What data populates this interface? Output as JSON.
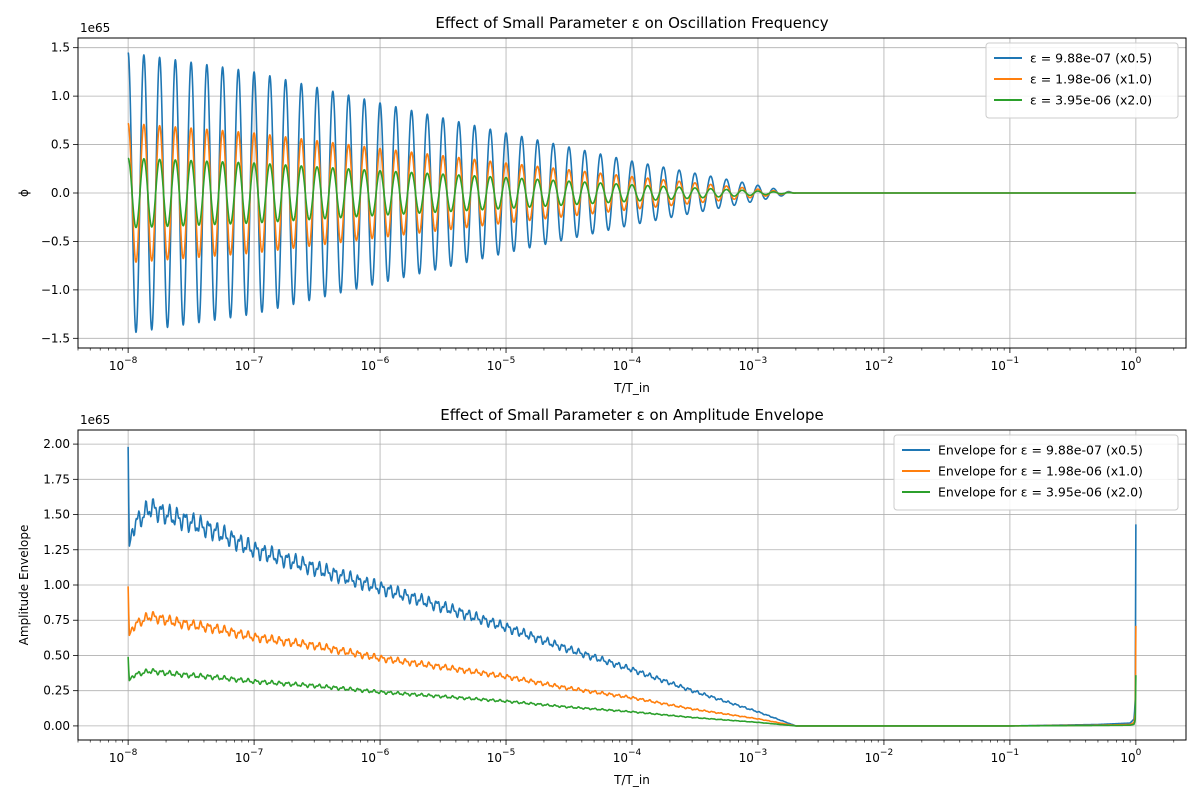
{
  "chart_data": [
    {
      "type": "line",
      "title": "Effect of Small Parameter ε on Oscillation Frequency",
      "xlabel": "T/T_in",
      "ylabel": "ϕ",
      "x_scale": "log",
      "xlim": [
        4e-09,
        2.5
      ],
      "ylim": [
        -1.6,
        1.6
      ],
      "y_offset_label": "1e65",
      "x_ticks": [
        1e-08,
        1e-07,
        1e-06,
        1e-05,
        0.0001,
        0.001,
        0.01,
        0.1,
        1
      ],
      "x_tick_labels": [
        {
          "base": "10",
          "exp": "−8"
        },
        {
          "base": "10",
          "exp": "−7"
        },
        {
          "base": "10",
          "exp": "−6"
        },
        {
          "base": "10",
          "exp": "−5"
        },
        {
          "base": "10",
          "exp": "−4"
        },
        {
          "base": "10",
          "exp": "−3"
        },
        {
          "base": "10",
          "exp": "−2"
        },
        {
          "base": "10",
          "exp": "−1"
        },
        {
          "base": "10",
          "exp": "0"
        }
      ],
      "y_ticks": [
        -1.5,
        -1.0,
        -0.5,
        0.0,
        0.5,
        1.0,
        1.5
      ],
      "y_tick_labels": [
        "−1.5",
        "−1.0",
        "−0.5",
        "0.0",
        "0.5",
        "1.0",
        "1.5"
      ],
      "grid": true,
      "legend_position": "upper-right",
      "oscillation": {
        "cycles_per_decade": 8,
        "decay_end_x": 0.002
      },
      "series": [
        {
          "name": "ε = 9.88e-07 (x0.5)",
          "color": "#1f77b4",
          "envelope": {
            "x": [
              1e-08,
              1e-07,
              1e-06,
              1e-05,
              0.0001,
              0.001,
              0.002,
              1
            ],
            "y": [
              1.45,
              1.25,
              0.93,
              0.62,
              0.33,
              0.08,
              0.0,
              0.0
            ]
          }
        },
        {
          "name": "ε = 1.98e-06 (x1.0)",
          "color": "#ff7f0e",
          "envelope": {
            "x": [
              1e-08,
              1e-07,
              1e-06,
              1e-05,
              0.0001,
              0.001,
              0.002,
              1
            ],
            "y": [
              0.72,
              0.62,
              0.46,
              0.31,
              0.17,
              0.04,
              0.0,
              0.0
            ]
          }
        },
        {
          "name": "ε = 3.95e-06 (x2.0)",
          "color": "#2ca02c",
          "envelope": {
            "x": [
              1e-08,
              1e-07,
              1e-06,
              1e-05,
              0.0001,
              0.001,
              0.002,
              1
            ],
            "y": [
              0.36,
              0.31,
              0.23,
              0.16,
              0.085,
              0.02,
              0.0,
              0.0
            ]
          }
        }
      ]
    },
    {
      "type": "line",
      "title": "Effect of Small Parameter ε on Amplitude Envelope",
      "xlabel": "T/T_in",
      "ylabel": "Amplitude Envelope",
      "x_scale": "log",
      "xlim": [
        4e-09,
        2.5
      ],
      "ylim": [
        -0.1,
        2.1
      ],
      "y_offset_label": "1e65",
      "x_ticks": [
        1e-08,
        1e-07,
        1e-06,
        1e-05,
        0.0001,
        0.001,
        0.01,
        0.1,
        1
      ],
      "x_tick_labels": [
        {
          "base": "10",
          "exp": "−8"
        },
        {
          "base": "10",
          "exp": "−7"
        },
        {
          "base": "10",
          "exp": "−6"
        },
        {
          "base": "10",
          "exp": "−5"
        },
        {
          "base": "10",
          "exp": "−4"
        },
        {
          "base": "10",
          "exp": "−3"
        },
        {
          "base": "10",
          "exp": "−2"
        },
        {
          "base": "10",
          "exp": "−1"
        },
        {
          "base": "10",
          "exp": "0"
        }
      ],
      "y_ticks": [
        0.0,
        0.25,
        0.5,
        0.75,
        1.0,
        1.25,
        1.5,
        1.75,
        2.0
      ],
      "y_tick_labels": [
        "0.00",
        "0.25",
        "0.50",
        "0.75",
        "1.00",
        "1.25",
        "1.50",
        "1.75",
        "2.00"
      ],
      "grid": true,
      "legend_position": "upper-right",
      "series": [
        {
          "name": "Envelope for ε = 9.88e-07 (x0.5)",
          "color": "#1f77b4",
          "x": [
            1e-08,
            1.02e-08,
            1.1e-08,
            1.5e-08,
            2e-08,
            3e-08,
            5e-08,
            1e-07,
            3e-07,
            1e-06,
            3e-06,
            1e-05,
            3e-05,
            0.0001,
            0.0003,
            0.001,
            0.002,
            0.01,
            0.1,
            0.5,
            0.9,
            0.97,
            0.99,
            1.0
          ],
          "y": [
            1.98,
            1.27,
            1.42,
            1.55,
            1.5,
            1.45,
            1.38,
            1.25,
            1.12,
            0.98,
            0.85,
            0.7,
            0.55,
            0.4,
            0.25,
            0.1,
            0.0,
            0.0,
            0.0,
            0.01,
            0.02,
            0.05,
            0.2,
            1.43
          ]
        },
        {
          "name": "Envelope for ε = 1.98e-06 (x1.0)",
          "color": "#ff7f0e",
          "x": [
            1e-08,
            1.02e-08,
            1.1e-08,
            1.5e-08,
            2e-08,
            3e-08,
            5e-08,
            1e-07,
            3e-07,
            1e-06,
            3e-06,
            1e-05,
            3e-05,
            0.0001,
            0.0003,
            0.001,
            0.002,
            0.01,
            0.1,
            0.5,
            0.9,
            0.97,
            0.99,
            1.0
          ],
          "y": [
            0.99,
            0.64,
            0.71,
            0.78,
            0.75,
            0.72,
            0.69,
            0.63,
            0.57,
            0.48,
            0.42,
            0.35,
            0.27,
            0.2,
            0.12,
            0.05,
            0.0,
            0.0,
            0.0,
            0.005,
            0.01,
            0.025,
            0.1,
            0.71
          ]
        },
        {
          "name": "Envelope for ε = 3.95e-06 (x2.0)",
          "color": "#2ca02c",
          "x": [
            1e-08,
            1.02e-08,
            1.1e-08,
            1.5e-08,
            2e-08,
            3e-08,
            5e-08,
            1e-07,
            3e-07,
            1e-06,
            3e-06,
            1e-05,
            3e-05,
            0.0001,
            0.0003,
            0.001,
            0.002,
            0.01,
            0.1,
            0.5,
            0.9,
            0.97,
            0.99,
            1.0
          ],
          "y": [
            0.49,
            0.32,
            0.36,
            0.39,
            0.375,
            0.36,
            0.345,
            0.315,
            0.285,
            0.24,
            0.21,
            0.175,
            0.135,
            0.1,
            0.06,
            0.025,
            0.0,
            0.0,
            0.0,
            0.003,
            0.005,
            0.012,
            0.05,
            0.36
          ]
        }
      ]
    }
  ]
}
